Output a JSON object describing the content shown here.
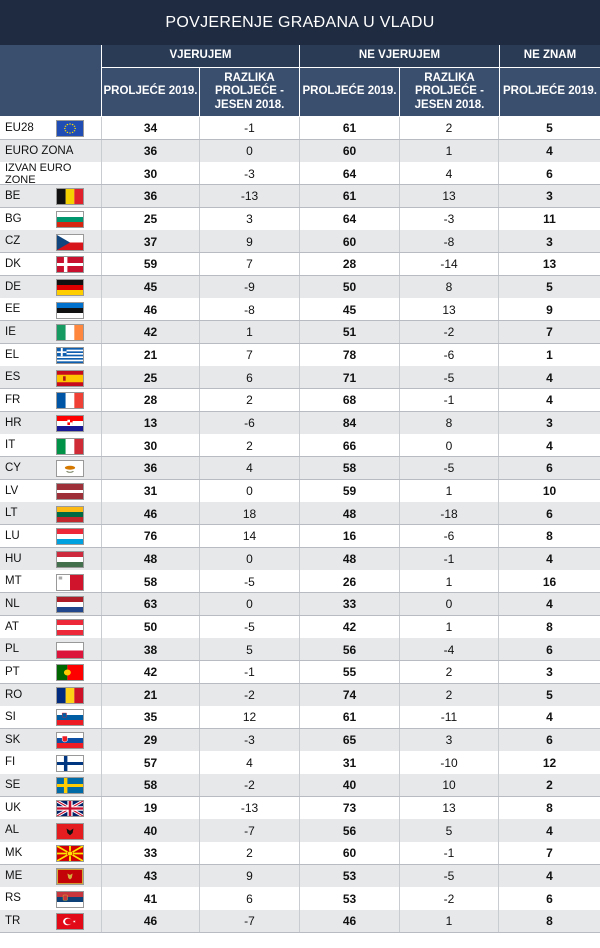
{
  "title": "POVJERENJE GRAĐANA U VLADU",
  "headers": {
    "groups": [
      "VJERUJEM",
      "NE VJERUJEM",
      "NE ZNAM"
    ],
    "sub": [
      "PROLJEĆE 2019.",
      "RAZLIKA PROLJEĆE - JESEN 2018.",
      "PROLJEĆE 2019.",
      "RAZLIKA PROLJEĆE - JESEN 2018.",
      "PROLJEĆE 2019."
    ]
  },
  "rows": [
    {
      "label": "EU28",
      "flag": "eu",
      "v": [
        "34",
        "-1",
        "61",
        "2",
        "5"
      ]
    },
    {
      "label": "EURO ZONA",
      "flag": "",
      "v": [
        "36",
        "0",
        "60",
        "1",
        "4"
      ]
    },
    {
      "label": "IZVAN EURO ZONE",
      "flag": "",
      "v": [
        "30",
        "-3",
        "64",
        "4",
        "6"
      ]
    },
    {
      "label": "BE",
      "flag": "be",
      "v": [
        "36",
        "-13",
        "61",
        "13",
        "3"
      ]
    },
    {
      "label": "BG",
      "flag": "bg",
      "v": [
        "25",
        "3",
        "64",
        "-3",
        "11"
      ]
    },
    {
      "label": "CZ",
      "flag": "cz",
      "v": [
        "37",
        "9",
        "60",
        "-8",
        "3"
      ]
    },
    {
      "label": "DK",
      "flag": "dk",
      "v": [
        "59",
        "7",
        "28",
        "-14",
        "13"
      ]
    },
    {
      "label": "DE",
      "flag": "de",
      "v": [
        "45",
        "-9",
        "50",
        "8",
        "5"
      ]
    },
    {
      "label": "EE",
      "flag": "ee",
      "v": [
        "46",
        "-8",
        "45",
        "13",
        "9"
      ]
    },
    {
      "label": "IE",
      "flag": "ie",
      "v": [
        "42",
        "1",
        "51",
        "-2",
        "7"
      ]
    },
    {
      "label": "EL",
      "flag": "el",
      "v": [
        "21",
        "7",
        "78",
        "-6",
        "1"
      ]
    },
    {
      "label": "ES",
      "flag": "es",
      "v": [
        "25",
        "6",
        "71",
        "-5",
        "4"
      ]
    },
    {
      "label": "FR",
      "flag": "fr",
      "v": [
        "28",
        "2",
        "68",
        "-1",
        "4"
      ]
    },
    {
      "label": "HR",
      "flag": "hr",
      "v": [
        "13",
        "-6",
        "84",
        "8",
        "3"
      ]
    },
    {
      "label": "IT",
      "flag": "it",
      "v": [
        "30",
        "2",
        "66",
        "0",
        "4"
      ]
    },
    {
      "label": "CY",
      "flag": "cy",
      "v": [
        "36",
        "4",
        "58",
        "-5",
        "6"
      ]
    },
    {
      "label": "LV",
      "flag": "lv",
      "v": [
        "31",
        "0",
        "59",
        "1",
        "10"
      ]
    },
    {
      "label": "LT",
      "flag": "lt",
      "v": [
        "46",
        "18",
        "48",
        "-18",
        "6"
      ]
    },
    {
      "label": "LU",
      "flag": "lu",
      "v": [
        "76",
        "14",
        "16",
        "-6",
        "8"
      ]
    },
    {
      "label": "HU",
      "flag": "hu",
      "v": [
        "48",
        "0",
        "48",
        "-1",
        "4"
      ]
    },
    {
      "label": "MT",
      "flag": "mt",
      "v": [
        "58",
        "-5",
        "26",
        "1",
        "16"
      ]
    },
    {
      "label": "NL",
      "flag": "nl",
      "v": [
        "63",
        "0",
        "33",
        "0",
        "4"
      ]
    },
    {
      "label": "AT",
      "flag": "at",
      "v": [
        "50",
        "-5",
        "42",
        "1",
        "8"
      ]
    },
    {
      "label": "PL",
      "flag": "pl",
      "v": [
        "38",
        "5",
        "56",
        "-4",
        "6"
      ]
    },
    {
      "label": "PT",
      "flag": "pt",
      "v": [
        "42",
        "-1",
        "55",
        "2",
        "3"
      ]
    },
    {
      "label": "RO",
      "flag": "ro",
      "v": [
        "21",
        "-2",
        "74",
        "2",
        "5"
      ]
    },
    {
      "label": "SI",
      "flag": "si",
      "v": [
        "35",
        "12",
        "61",
        "-11",
        "4"
      ]
    },
    {
      "label": "SK",
      "flag": "sk",
      "v": [
        "29",
        "-3",
        "65",
        "3",
        "6"
      ]
    },
    {
      "label": "FI",
      "flag": "fi",
      "v": [
        "57",
        "4",
        "31",
        "-10",
        "12"
      ]
    },
    {
      "label": "SE",
      "flag": "se",
      "v": [
        "58",
        "-2",
        "40",
        "10",
        "2"
      ]
    },
    {
      "label": "UK",
      "flag": "uk",
      "v": [
        "19",
        "-13",
        "73",
        "13",
        "8"
      ]
    },
    {
      "label": "AL",
      "flag": "al",
      "v": [
        "40",
        "-7",
        "56",
        "5",
        "4"
      ]
    },
    {
      "label": "MK",
      "flag": "mk",
      "v": [
        "33",
        "2",
        "60",
        "-1",
        "7"
      ]
    },
    {
      "label": "ME",
      "flag": "me",
      "v": [
        "43",
        "9",
        "53",
        "-5",
        "4"
      ]
    },
    {
      "label": "RS",
      "flag": "rs",
      "v": [
        "41",
        "6",
        "53",
        "-2",
        "6"
      ]
    },
    {
      "label": "TR",
      "flag": "tr",
      "v": [
        "46",
        "-7",
        "46",
        "1",
        "8"
      ]
    }
  ]
}
